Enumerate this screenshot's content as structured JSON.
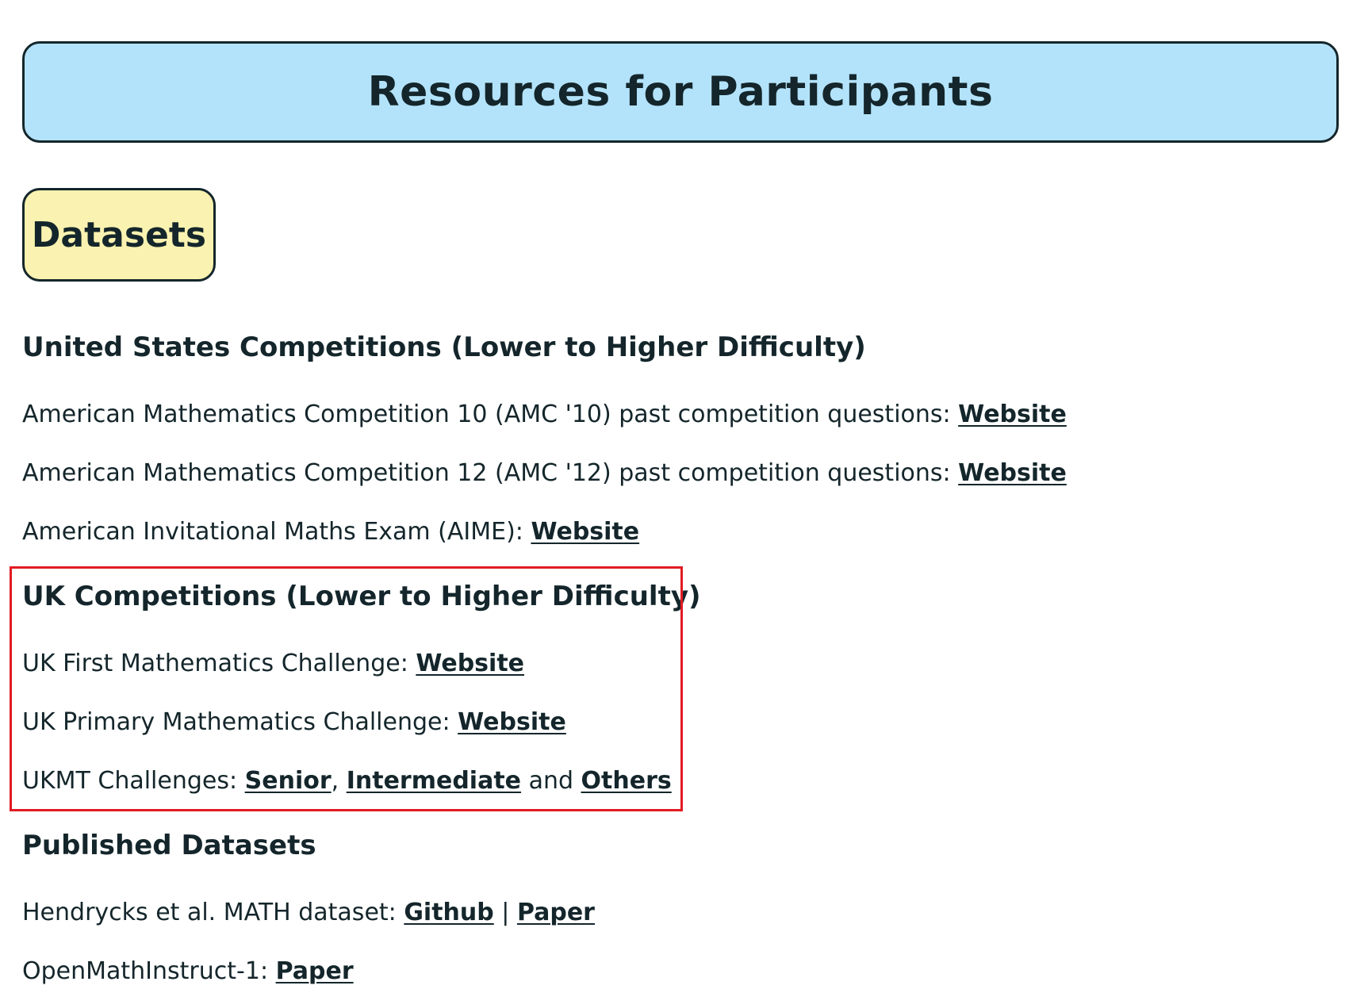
{
  "page_title": "Resources for Participants",
  "section_pill": "Datasets",
  "highlight_color": "#e11b22",
  "us": {
    "heading": "United States Competitions (Lower to Higher Difficulty)",
    "amc10": {
      "text": "American Mathematics Competition 10 (AMC '10) past competition questions: ",
      "link": "Website"
    },
    "amc12": {
      "text": "American Mathematics Competition 12 (AMC '12) past competition questions: ",
      "link": "Website"
    },
    "aime": {
      "text": "American Invitational Maths Exam (AIME): ",
      "link": "Website"
    }
  },
  "uk": {
    "heading": "UK Competitions (Lower to Higher Difficulty)",
    "first": {
      "text": "UK First Mathematics Challenge: ",
      "link": "Website"
    },
    "primary": {
      "text": "UK Primary Mathematics Challenge: ",
      "link": "Website"
    },
    "ukmt": {
      "text": "UKMT Challenges: ",
      "link_senior": "Senior",
      "sep1": ", ",
      "link_intermediate": "Intermediate",
      "sep2": " and ",
      "link_others": "Others"
    }
  },
  "published": {
    "heading": "Published Datasets",
    "hendrycks": {
      "text": "Hendrycks et al. MATH dataset: ",
      "link_github": "Github",
      "sep": " | ",
      "link_paper": "Paper"
    },
    "openmath": {
      "text": "OpenMathInstruct-1: ",
      "link": "Paper"
    }
  }
}
